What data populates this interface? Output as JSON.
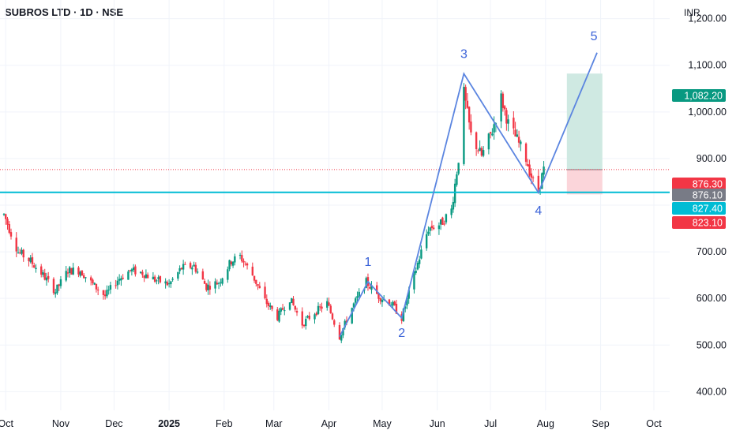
{
  "header": {
    "symbol_title": "SUBROS LTD · 1D · NSE",
    "currency": "INR"
  },
  "colors": {
    "up": "#089981",
    "down": "#f23645",
    "wave_line": "#5b85e0",
    "support_line": "#00bcd4",
    "profit_zone": "#cfe9e2",
    "loss_zone": "#fbd5da",
    "grid": "#f0f3fa"
  },
  "price_tags": [
    {
      "label": "1,082.20",
      "color": "#089981"
    },
    {
      "label": "876.30",
      "color": "#f23645"
    },
    {
      "label": "876.10",
      "color": "#787b86"
    },
    {
      "label": "827.40",
      "color": "#00bcd4"
    },
    {
      "label": "823.10",
      "color": "#f23645"
    }
  ],
  "chart_data": {
    "type": "candlestick",
    "title": "SUBROS LTD · 1D · NSE",
    "y_axis": {
      "range": [
        360,
        1240
      ],
      "ticks": [
        "1,200.00",
        "1,100.00",
        "1,000.00",
        "900.00",
        "700.00",
        "600.00",
        "500.00",
        "400.00"
      ],
      "tick_values": [
        1200,
        1100,
        1000,
        900,
        700,
        600,
        500,
        400
      ]
    },
    "x_axis": {
      "ticks": [
        "Oct",
        "Nov",
        "Dec",
        "2025",
        "Feb",
        "Mar",
        "Apr",
        "May",
        "Jun",
        "Jul",
        "Aug",
        "Sep",
        "Oct"
      ]
    },
    "wave_points": [
      {
        "label": "",
        "date": "2025-04-07",
        "price": 518
      },
      {
        "label": "1",
        "date": "2025-04-23",
        "price": 636
      },
      {
        "label": "2",
        "date": "2025-05-12",
        "price": 558
      },
      {
        "label": "3",
        "date": "2025-06-16",
        "price": 1082
      },
      {
        "label": "4",
        "date": "2025-07-28",
        "price": 827
      },
      {
        "label": "5",
        "date": "2025-08-30",
        "price": 1127
      }
    ],
    "position": {
      "entry": 876.1,
      "target": 1082.2,
      "stop": 823.1,
      "start": "2025-08-13",
      "end": "2025-09-02"
    },
    "horizontal_line": 827.4,
    "last_price": 876.3,
    "keyframes": [
      [
        "2024-09-30",
        780
      ],
      [
        "2024-10-08",
        700
      ],
      [
        "2024-10-15",
        680
      ],
      [
        "2024-10-22",
        650
      ],
      [
        "2024-10-29",
        615
      ],
      [
        "2024-11-05",
        660
      ],
      [
        "2024-11-12",
        660
      ],
      [
        "2024-11-19",
        630
      ],
      [
        "2024-11-26",
        605
      ],
      [
        "2024-12-03",
        640
      ],
      [
        "2024-12-10",
        660
      ],
      [
        "2024-12-17",
        655
      ],
      [
        "2024-12-24",
        640
      ],
      [
        "2025-01-01",
        630
      ],
      [
        "2025-01-08",
        665
      ],
      [
        "2025-01-15",
        670
      ],
      [
        "2025-01-22",
        625
      ],
      [
        "2025-01-29",
        635
      ],
      [
        "2025-02-05",
        680
      ],
      [
        "2025-02-10",
        690
      ],
      [
        "2025-02-17",
        650
      ],
      [
        "2025-02-24",
        595
      ],
      [
        "2025-03-03",
        560
      ],
      [
        "2025-03-10",
        600
      ],
      [
        "2025-03-17",
        545
      ],
      [
        "2025-03-24",
        570
      ],
      [
        "2025-03-31",
        590
      ],
      [
        "2025-04-07",
        518
      ],
      [
        "2025-04-14",
        580
      ],
      [
        "2025-04-22",
        635
      ],
      [
        "2025-04-29",
        605
      ],
      [
        "2025-05-06",
        590
      ],
      [
        "2025-05-12",
        558
      ],
      [
        "2025-05-19",
        650
      ],
      [
        "2025-05-27",
        750
      ],
      [
        "2025-06-03",
        760
      ],
      [
        "2025-06-09",
        790
      ],
      [
        "2025-06-13",
        900
      ],
      [
        "2025-06-16",
        1040
      ],
      [
        "2025-06-20",
        950
      ],
      [
        "2025-06-26",
        905
      ],
      [
        "2025-07-02",
        960
      ],
      [
        "2025-07-07",
        1030
      ],
      [
        "2025-07-11",
        975
      ],
      [
        "2025-07-16",
        940
      ],
      [
        "2025-07-21",
        900
      ],
      [
        "2025-07-25",
        850
      ],
      [
        "2025-07-28",
        835
      ],
      [
        "2025-07-31",
        876
      ]
    ]
  }
}
